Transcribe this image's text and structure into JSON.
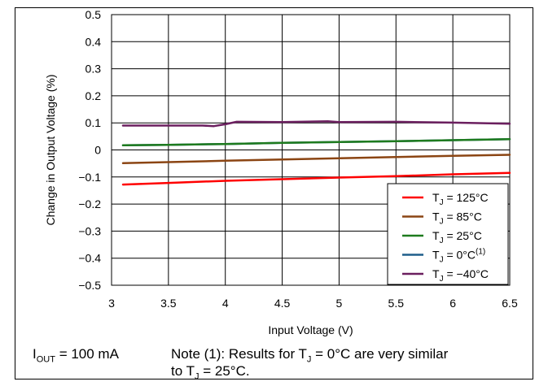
{
  "chart_data": {
    "type": "line",
    "title": "",
    "xlabel": "Input Voltage (V)",
    "ylabel": "Change in Output Voltage (%)",
    "xlim": [
      3,
      6.5
    ],
    "ylim": [
      -0.5,
      0.5
    ],
    "xticks": [
      "3",
      "3.5",
      "4",
      "4.5",
      "5",
      "5.5",
      "6",
      "6.5"
    ],
    "yticks": [
      "0.5",
      "0.4",
      "0.3",
      "0.2",
      "0.1",
      "0",
      "−0.1",
      "−0.2",
      "−0.3",
      "−0.4",
      "−0.5"
    ],
    "grid": true,
    "legend_position": "bottom-right",
    "series": [
      {
        "name": "T_J = 125°C",
        "label_main": "T",
        "label_sub": "J",
        "label_rest": " = 125°C",
        "label_sup": "",
        "color": "#ff0000",
        "x": [
          3.1,
          3.5,
          4.0,
          4.5,
          5.0,
          5.5,
          6.0,
          6.5
        ],
        "y": [
          -0.128,
          -0.122,
          -0.114,
          -0.108,
          -0.102,
          -0.097,
          -0.09,
          -0.085
        ]
      },
      {
        "name": "T_J = 85°C",
        "label_main": "T",
        "label_sub": "J",
        "label_rest": " = 85°C",
        "label_sup": "",
        "color": "#8b4513",
        "x": [
          3.1,
          3.5,
          4.0,
          4.5,
          5.0,
          5.5,
          6.0,
          6.5
        ],
        "y": [
          -0.049,
          -0.045,
          -0.04,
          -0.035,
          -0.031,
          -0.026,
          -0.022,
          -0.018
        ]
      },
      {
        "name": "T_J = 25°C",
        "label_main": "T",
        "label_sub": "J",
        "label_rest": " = 25°C",
        "label_sup": "",
        "color": "#1e7b1e",
        "x": [
          3.1,
          3.5,
          4.0,
          4.5,
          5.0,
          5.5,
          6.0,
          6.5
        ],
        "y": [
          0.017,
          0.019,
          0.022,
          0.026,
          0.029,
          0.032,
          0.036,
          0.04
        ]
      },
      {
        "name": "T_J = 0°C(1)",
        "label_main": "T",
        "label_sub": "J",
        "label_rest": " = 0°C",
        "label_sup": "(1)",
        "color": "#1f5f8b",
        "x": [
          3.1,
          3.5,
          4.0,
          4.5,
          5.0,
          5.5,
          6.0,
          6.5
        ],
        "y": [
          0.017,
          0.019,
          0.022,
          0.026,
          0.029,
          0.032,
          0.036,
          0.04
        ]
      },
      {
        "name": "T_J = −40°C",
        "label_main": "T",
        "label_sub": "J",
        "label_rest": " = −40°C",
        "label_sup": "",
        "color": "#6b1f5f",
        "x": [
          3.1,
          3.5,
          3.8,
          3.9,
          4.0,
          4.1,
          4.5,
          4.9,
          5.0,
          5.5,
          6.0,
          6.5
        ],
        "y": [
          0.09,
          0.09,
          0.09,
          0.088,
          0.095,
          0.104,
          0.103,
          0.106,
          0.103,
          0.104,
          0.101,
          0.097
        ]
      }
    ]
  },
  "footnote": {
    "iout_main": "I",
    "iout_sub": "OUT",
    "iout_rest": " = 100 mA",
    "note_line1_pre": "Note (1): Results for T",
    "note_line1_sub": "J",
    "note_line1_post": " = 0°C are very similar",
    "note_line2_pre": "to T",
    "note_line2_sub": "J",
    "note_line2_post": " = 25°C."
  }
}
